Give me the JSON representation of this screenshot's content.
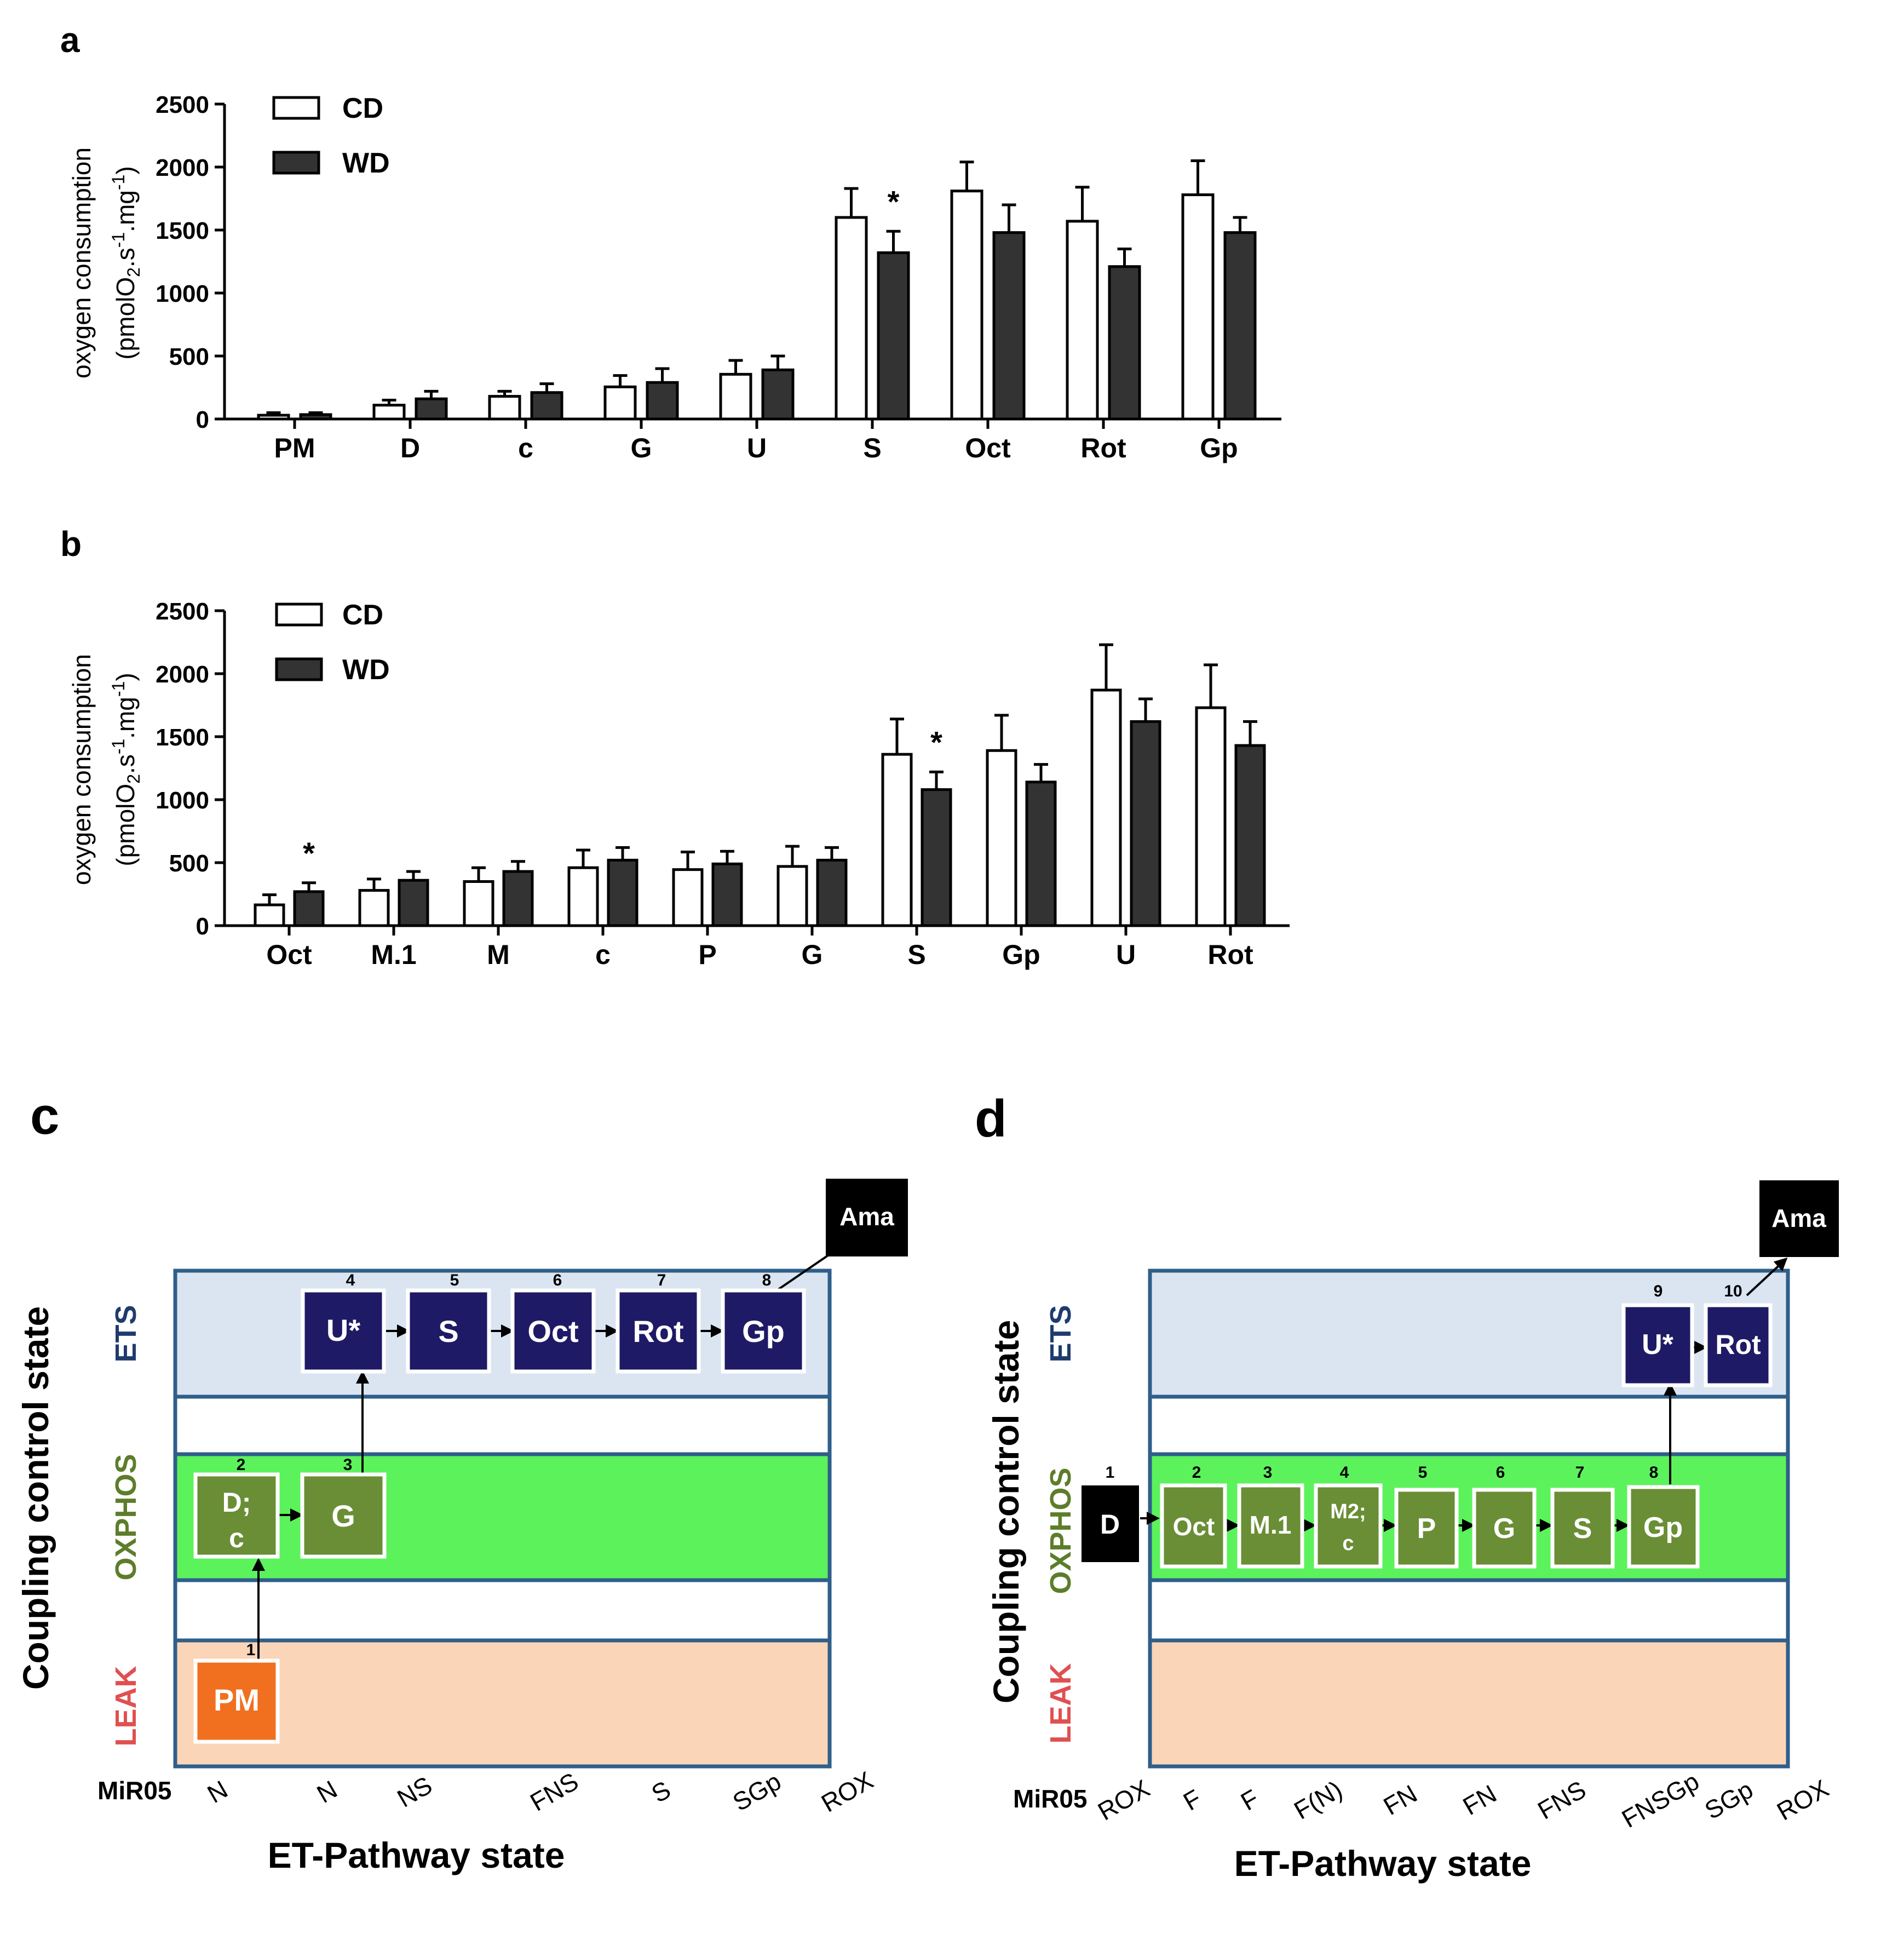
{
  "chart_data": [
    {
      "panel": "a",
      "type": "bar",
      "categories": [
        "PM",
        "D",
        "c",
        "G",
        "U",
        "S",
        "Oct",
        "Rot",
        "Gp"
      ],
      "series": [
        {
          "name": "CD",
          "values": [
            30,
            110,
            180,
            255,
            355,
            1600,
            1810,
            1570,
            1780
          ],
          "errors": [
            20,
            40,
            40,
            90,
            110,
            230,
            230,
            270,
            270
          ]
        },
        {
          "name": "WD",
          "values": [
            35,
            160,
            210,
            290,
            390,
            1320,
            1480,
            1210,
            1480
          ],
          "errors": [
            15,
            60,
            70,
            110,
            110,
            170,
            220,
            140,
            120
          ]
        }
      ],
      "annotations": [
        {
          "category": "S",
          "series": "WD",
          "text": "*"
        }
      ],
      "ylabel_line1": "oxygen consumption",
      "ylabel_line2": "(pmolO2.s-1.mg-1)",
      "ylim": [
        0,
        2500
      ],
      "yticks": [
        "0",
        "500",
        "1000",
        "1500",
        "2000",
        "2500"
      ],
      "legend_position": "top-left"
    },
    {
      "panel": "b",
      "type": "bar",
      "categories": [
        "Oct",
        "M.1",
        "M",
        "c",
        "P",
        "G",
        "S",
        "Gp",
        "U",
        "Rot"
      ],
      "series": [
        {
          "name": "CD",
          "values": [
            165,
            280,
            350,
            460,
            445,
            470,
            1360,
            1390,
            1870,
            1730
          ],
          "errors": [
            80,
            90,
            110,
            140,
            140,
            160,
            280,
            280,
            360,
            340
          ]
        },
        {
          "name": "WD",
          "values": [
            270,
            360,
            430,
            520,
            490,
            520,
            1080,
            1140,
            1620,
            1430
          ],
          "errors": [
            70,
            70,
            80,
            100,
            100,
            100,
            140,
            140,
            180,
            190
          ]
        }
      ],
      "annotations": [
        {
          "category": "Oct",
          "series": "WD",
          "text": "*"
        },
        {
          "category": "S",
          "series": "WD",
          "text": "*"
        }
      ],
      "ylabel_line1": "oxygen consumption",
      "ylabel_line2": "(pmolO2.s-1.mg-1)",
      "ylim": [
        0,
        2500
      ],
      "yticks": [
        "0",
        "500",
        "1000",
        "1500",
        "2000",
        "2500"
      ],
      "legend_position": "top-left"
    }
  ],
  "panel_labels": {
    "a": "a",
    "b": "b",
    "c": "c",
    "d": "d"
  },
  "diagram_c": {
    "y_title": "Coupling control state",
    "x_title": "ET-Pathway state",
    "medium": "MiR05",
    "rows": [
      "ETS",
      "OXPHOS",
      "LEAK"
    ],
    "x_labels": [
      "N",
      "N",
      "NS",
      "FNS",
      "S",
      "SGp",
      "ROX"
    ],
    "steps": [
      {
        "num": "1",
        "label": "PM",
        "level": "LEAK"
      },
      {
        "num": "2",
        "label": "D;\nc",
        "level": "OXPHOS"
      },
      {
        "num": "3",
        "label": "G",
        "level": "OXPHOS"
      },
      {
        "num": "4",
        "label": "U*",
        "level": "ETS"
      },
      {
        "num": "5",
        "label": "S",
        "level": "ETS"
      },
      {
        "num": "6",
        "label": "Oct",
        "level": "ETS"
      },
      {
        "num": "7",
        "label": "Rot",
        "level": "ETS"
      },
      {
        "num": "8",
        "label": "Gp",
        "level": "ETS"
      }
    ],
    "final": "Ama"
  },
  "diagram_d": {
    "y_title": "Coupling control state",
    "x_title": "ET-Pathway state",
    "medium": "MiR05",
    "rows": [
      "ETS",
      "OXPHOS",
      "LEAK"
    ],
    "x_labels": [
      "ROX",
      "F",
      "F",
      "F(N)",
      "FN",
      "FN",
      "FNS",
      "FNSGp",
      "SGp",
      "ROX"
    ],
    "steps": [
      {
        "num": "1",
        "label": "D",
        "level": "OXPHOS"
      },
      {
        "num": "2",
        "label": "Oct",
        "level": "OXPHOS"
      },
      {
        "num": "3",
        "label": "M.1",
        "level": "OXPHOS"
      },
      {
        "num": "4",
        "label": "M2;\nc",
        "level": "OXPHOS"
      },
      {
        "num": "5",
        "label": "P",
        "level": "OXPHOS"
      },
      {
        "num": "6",
        "label": "G",
        "level": "OXPHOS"
      },
      {
        "num": "7",
        "label": "S",
        "level": "OXPHOS"
      },
      {
        "num": "8",
        "label": "Gp",
        "level": "OXPHOS"
      },
      {
        "num": "9",
        "label": "U*",
        "level": "ETS"
      },
      {
        "num": "10",
        "label": "Rot",
        "level": "ETS"
      }
    ],
    "final": "Ama"
  },
  "colors": {
    "ets_fill": "#dbe5f2",
    "oxphos_fill": "#5cf25c",
    "leak_fill": "#fbd5b8",
    "frame": "#2f5f8a",
    "ets_box": "#1f1a66",
    "oxphos_box": "#6a8e35",
    "leak_box": "#f07020",
    "ets_text": "#1f3b6e",
    "oxphos_text": "#5d7d2a",
    "leak_text": "#e05050"
  }
}
